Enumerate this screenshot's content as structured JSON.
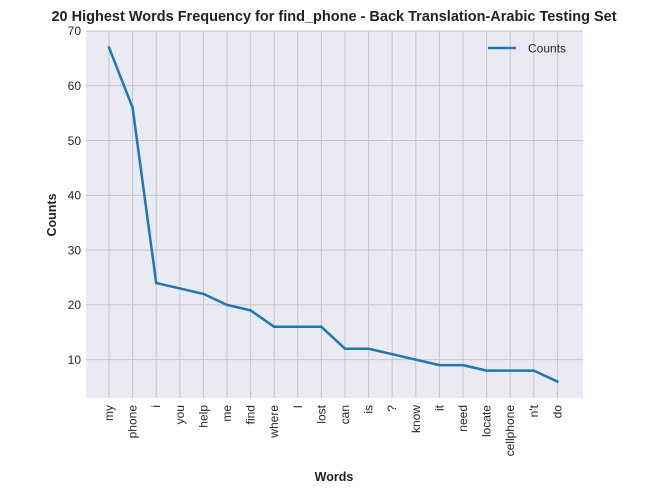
{
  "chart_data": {
    "type": "line",
    "title": "20 Highest Words Frequency for find_phone - Back Translation-Arabic Testing Set",
    "xlabel": "Words",
    "ylabel": "Counts",
    "categories": [
      "my",
      "phone",
      "i",
      "you",
      "help",
      "me",
      "find",
      "where",
      "I",
      "lost",
      "can",
      "is",
      "?",
      "know",
      "it",
      "need",
      "locate",
      "cellphone",
      "n't",
      "do"
    ],
    "series": [
      {
        "name": "Counts",
        "values": [
          67,
          56,
          24,
          23,
          22,
          20,
          19,
          16,
          16,
          16,
          12,
          12,
          11,
          10,
          9,
          9,
          8,
          8,
          8,
          6
        ]
      }
    ],
    "yticks": [
      10,
      20,
      30,
      40,
      50,
      60,
      70
    ],
    "ylim": [
      3.0,
      70
    ],
    "grid": true,
    "legend_position": "top-right",
    "colors": {
      "line": "#1f77b4",
      "plot_background": "#eaeaf2",
      "grid": "#c4c4c8"
    }
  }
}
